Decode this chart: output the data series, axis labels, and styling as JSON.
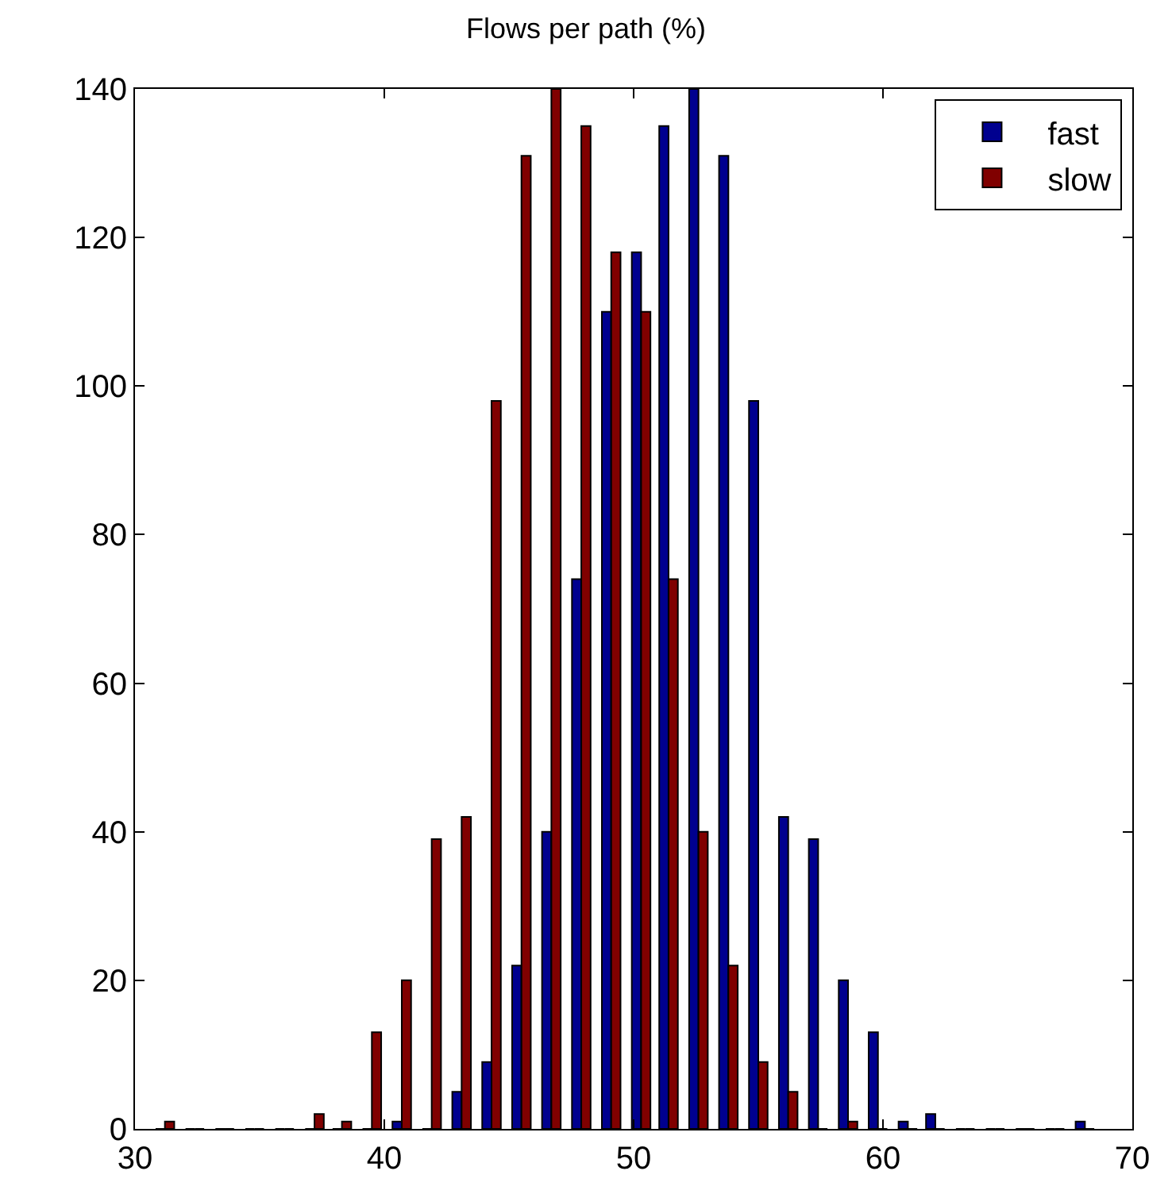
{
  "chart_data": {
    "type": "bar",
    "title": "Flows per path (%)",
    "x": [
      31.2,
      32.4,
      33.6,
      34.8,
      36.0,
      37.2,
      38.3,
      39.5,
      40.7,
      41.9,
      43.1,
      44.3,
      45.5,
      46.7,
      47.9,
      49.1,
      50.3,
      51.4,
      52.6,
      53.8,
      55.0,
      56.2,
      57.4,
      58.6,
      59.8,
      61.0,
      62.1,
      63.3,
      64.5,
      65.7,
      66.9,
      68.1
    ],
    "series": [
      {
        "name": "fast",
        "color": "#00008f",
        "values": [
          0,
          0,
          0,
          0,
          0,
          0,
          0,
          0,
          1,
          0,
          5,
          9,
          22,
          40,
          74,
          110,
          118,
          135,
          140,
          131,
          98,
          42,
          39,
          20,
          13,
          1,
          2,
          0,
          0,
          0,
          0,
          1
        ]
      },
      {
        "name": "slow",
        "color": "#800000",
        "values": [
          1,
          0,
          0,
          0,
          0,
          2,
          1,
          13,
          20,
          39,
          42,
          98,
          131,
          140,
          135,
          118,
          110,
          74,
          40,
          22,
          9,
          5,
          0,
          1,
          0,
          0,
          0,
          0,
          0,
          0,
          0,
          0
        ]
      }
    ],
    "xlim": [
      30,
      70
    ],
    "xticks": [
      30,
      40,
      50,
      60,
      70
    ],
    "ylim": [
      0,
      140
    ],
    "yticks": [
      0,
      20,
      40,
      60,
      80,
      100,
      120,
      140
    ],
    "legend": "top right"
  }
}
